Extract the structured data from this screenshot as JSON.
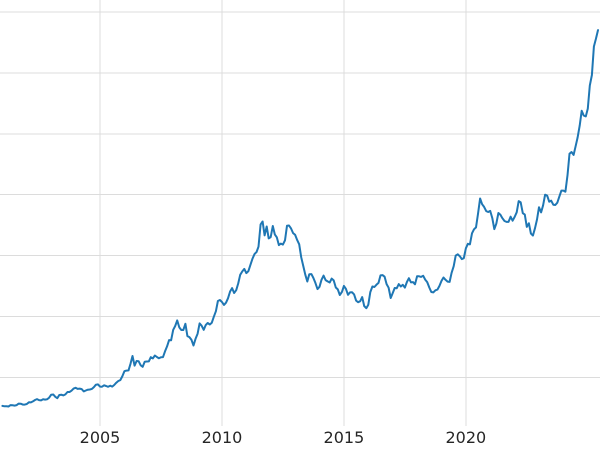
{
  "chart_data": {
    "type": "line",
    "title": "",
    "xlabel": "",
    "ylabel": "",
    "legend": "off",
    "grid": "on",
    "line_color": "#1f77b4",
    "line_width": 2,
    "grid_color": "#dcdcdc",
    "tick_color": "#262626",
    "background_color": "#ffffff",
    "xlim": [
      2000.9,
      2025.5
    ],
    "ylim": [
      100,
      3600
    ],
    "x_start": 2001.0,
    "x_step": 0.0833333,
    "x_ticks": [
      {
        "value": 2005,
        "label": "2005"
      },
      {
        "value": 2010,
        "label": "2010"
      },
      {
        "value": 2015,
        "label": "2015"
      },
      {
        "value": 2020,
        "label": "2020"
      }
    ],
    "y_gridlines": [
      500,
      1000,
      1500,
      2000,
      2500,
      3000,
      3500
    ],
    "values": [
      265,
      262,
      263,
      260,
      272,
      270,
      268,
      272,
      284,
      283,
      276,
      276,
      281,
      295,
      294,
      302,
      314,
      321,
      313,
      310,
      319,
      317,
      319,
      333,
      357,
      359,
      340,
      328,
      355,
      357,
      351,
      360,
      379,
      379,
      390,
      407,
      414,
      405,
      407,
      403,
      384,
      392,
      398,
      400,
      405,
      420,
      439,
      442,
      424,
      423,
      434,
      429,
      422,
      431,
      424,
      437,
      456,
      470,
      477,
      510,
      550,
      555,
      557,
      611,
      675,
      596,
      634,
      632,
      599,
      586,
      628,
      630,
      631,
      665,
      655,
      679,
      667,
      656,
      665,
      666,
      713,
      755,
      806,
      804,
      890,
      922,
      968,
      910,
      889,
      889,
      940,
      839,
      830,
      807,
      761,
      816,
      858,
      943,
      924,
      890,
      929,
      946,
      934,
      949,
      997,
      1043,
      1127,
      1135,
      1118,
      1095,
      1113,
      1149,
      1205,
      1233,
      1193,
      1216,
      1271,
      1342,
      1370,
      1391,
      1356,
      1373,
      1424,
      1473,
      1512,
      1529,
      1573,
      1756,
      1780,
      1666,
      1739,
      1641,
      1652,
      1743,
      1674,
      1650,
      1586,
      1599,
      1590,
      1626,
      1745,
      1747,
      1722,
      1685,
      1671,
      1627,
      1593,
      1487,
      1414,
      1343,
      1287,
      1347,
      1348,
      1316,
      1276,
      1225,
      1244,
      1301,
      1336,
      1299,
      1288,
      1279,
      1311,
      1296,
      1238,
      1222,
      1176,
      1201,
      1251,
      1227,
      1178,
      1198,
      1199,
      1181,
      1130,
      1117,
      1125,
      1159,
      1086,
      1068,
      1097,
      1200,
      1246,
      1242,
      1260,
      1276,
      1337,
      1340,
      1327,
      1266,
      1236,
      1152,
      1192,
      1234,
      1231,
      1266,
      1246,
      1260,
      1237,
      1283,
      1314,
      1280,
      1282,
      1264,
      1331,
      1330,
      1325,
      1334,
      1303,
      1282,
      1238,
      1201,
      1198,
      1215,
      1221,
      1250,
      1292,
      1320,
      1301,
      1286,
      1284,
      1359,
      1413,
      1500,
      1511,
      1495,
      1471,
      1479,
      1561,
      1597,
      1592,
      1683,
      1716,
      1732,
      1843,
      1969,
      1922,
      1900,
      1866,
      1858,
      1867,
      1808,
      1718,
      1762,
      1850,
      1835,
      1807,
      1784,
      1777,
      1777,
      1820,
      1787,
      1817,
      1856,
      1948,
      1937,
      1848,
      1837,
      1736,
      1765,
      1681,
      1664,
      1725,
      1797,
      1898,
      1855,
      1913,
      2000,
      1992,
      1943,
      1951,
      1918,
      1916,
      1935,
      1984,
      2034,
      2034,
      2025,
      2160,
      2336,
      2351,
      2327,
      2398,
      2470,
      2568,
      2690,
      2651,
      2644,
      2708,
      2897,
      2984,
      3218,
      3280,
      3353
    ]
  }
}
